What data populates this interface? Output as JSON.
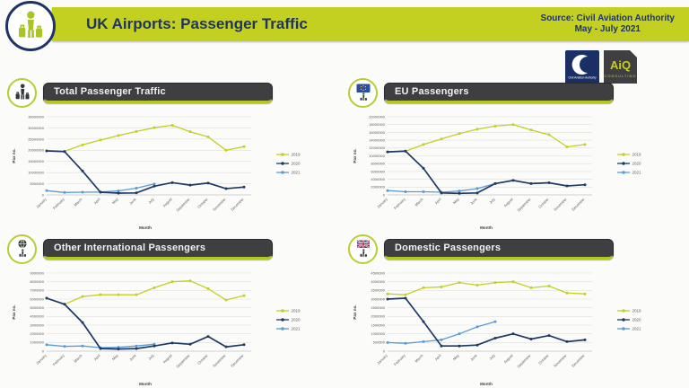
{
  "header": {
    "title": "UK Airports: Passenger Traffic",
    "source_line1": "Source: Civil Aviation Authority",
    "source_line2": "May - July 2021"
  },
  "logos": {
    "caa_label": "Civil Aviation Authority",
    "aiq_title": "AiQ",
    "aiq_subtitle": "CONSULTING"
  },
  "colors": {
    "lime": "#c3d021",
    "navy": "#1f3864",
    "light_blue": "#5b9bd5",
    "panel_bar": "#3f3f41"
  },
  "chart_data": [
    {
      "type": "line",
      "title": "Total Passenger Traffic",
      "icon": "traveler-icon",
      "xlabel": "Month",
      "ylabel": "Pax no.",
      "ylim": [
        0,
        35000000
      ],
      "ytick_step": 5000000,
      "legend_position": "right",
      "grid": true,
      "x_categories": [
        "January",
        "February",
        "March",
        "April",
        "May",
        "June",
        "July",
        "August",
        "September",
        "October",
        "November",
        "December"
      ],
      "series": [
        {
          "name": "2019",
          "color": "#c3d021",
          "values": [
            19700000,
            19500000,
            22400000,
            24600000,
            26600000,
            28400000,
            30100000,
            31200000,
            28300000,
            26000000,
            20000000,
            21600000
          ]
        },
        {
          "name": "2020",
          "color": "#1f3864",
          "values": [
            19700000,
            19400000,
            10700000,
            1200000,
            800000,
            900000,
            3900000,
            5500000,
            4400000,
            5300000,
            2800000,
            3500000
          ]
        },
        {
          "name": "2021",
          "color": "#5b9bd5",
          "values": [
            1900000,
            1100000,
            1200000,
            1300000,
            1800000,
            3000000,
            4900000,
            null,
            null,
            null,
            null,
            null
          ]
        }
      ]
    },
    {
      "type": "line",
      "title": "EU Passengers",
      "icon": "eu-flag-traveler-icon",
      "xlabel": "Month",
      "ylabel": "Pax no.",
      "ylim": [
        0,
        20000000
      ],
      "ytick_step": 2000000,
      "legend_position": "right",
      "grid": true,
      "x_categories": [
        "January",
        "February",
        "March",
        "April",
        "May",
        "June",
        "July",
        "August",
        "September",
        "October",
        "November",
        "December"
      ],
      "series": [
        {
          "name": "2019",
          "color": "#c3d021",
          "values": [
            11000000,
            11200000,
            12900000,
            14300000,
            15700000,
            16800000,
            17600000,
            18000000,
            16600000,
            15400000,
            12300000,
            12900000
          ]
        },
        {
          "name": "2020",
          "color": "#1f3864",
          "values": [
            11000000,
            11200000,
            6800000,
            500000,
            400000,
            500000,
            2900000,
            3700000,
            2900000,
            3100000,
            2300000,
            2600000
          ]
        },
        {
          "name": "2021",
          "color": "#5b9bd5",
          "values": [
            1100000,
            800000,
            800000,
            700000,
            1000000,
            1600000,
            2900000,
            null,
            null,
            null,
            null,
            null
          ]
        }
      ]
    },
    {
      "type": "line",
      "title": "Other International Passengers",
      "icon": "globe-traveler-icon",
      "xlabel": "Month",
      "ylabel": "Pax no.",
      "ylim": [
        0,
        9000000
      ],
      "ytick_step": 1000000,
      "legend_position": "right",
      "grid": true,
      "x_categories": [
        "January",
        "February",
        "March",
        "April",
        "May",
        "June",
        "July",
        "August",
        "September",
        "October",
        "November",
        "December"
      ],
      "series": [
        {
          "name": "2019",
          "color": "#c3d021",
          "values": [
            6100000,
            5400000,
            6300000,
            6500000,
            6500000,
            6500000,
            7300000,
            8000000,
            8100000,
            7200000,
            5900000,
            6400000
          ]
        },
        {
          "name": "2020",
          "color": "#1f3864",
          "values": [
            6100000,
            5400000,
            3300000,
            300000,
            250000,
            300000,
            600000,
            950000,
            800000,
            1700000,
            500000,
            750000
          ]
        },
        {
          "name": "2021",
          "color": "#5b9bd5",
          "values": [
            750000,
            550000,
            600000,
            400000,
            450000,
            600000,
            800000,
            null,
            null,
            null,
            null,
            null
          ]
        }
      ]
    },
    {
      "type": "line",
      "title": "Domestic Passengers",
      "icon": "uk-flag-traveler-icon",
      "xlabel": "Month",
      "ylabel": "Pax no.",
      "ylim": [
        0,
        4500000
      ],
      "ytick_step": 500000,
      "legend_position": "right",
      "grid": true,
      "x_categories": [
        "January",
        "February",
        "March",
        "April",
        "May",
        "June",
        "July",
        "August",
        "September",
        "October",
        "November",
        "December"
      ],
      "series": [
        {
          "name": "2019",
          "color": "#c3d021",
          "values": [
            3300000,
            3250000,
            3650000,
            3700000,
            3950000,
            3800000,
            3950000,
            4000000,
            3650000,
            3750000,
            3350000,
            3300000
          ]
        },
        {
          "name": "2020",
          "color": "#1f3864",
          "values": [
            3000000,
            3050000,
            1700000,
            300000,
            300000,
            350000,
            750000,
            1000000,
            700000,
            900000,
            550000,
            650000
          ]
        },
        {
          "name": "2021",
          "color": "#5b9bd5",
          "values": [
            500000,
            450000,
            550000,
            650000,
            1000000,
            1400000,
            1700000,
            null,
            null,
            null,
            null,
            null
          ]
        }
      ]
    }
  ]
}
